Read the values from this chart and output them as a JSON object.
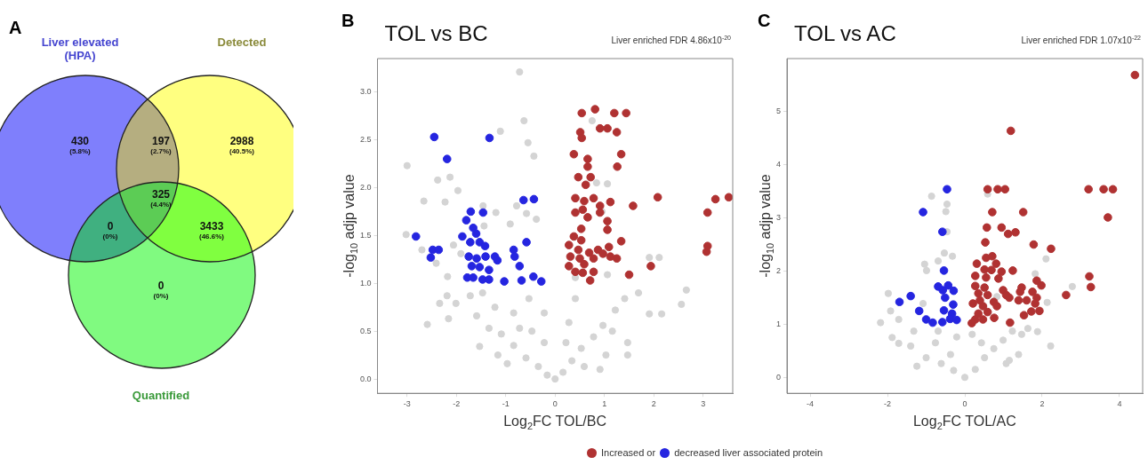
{
  "chart_data": [
    {
      "type": "other",
      "annotations": [
        "A",
        "Liver elevated (HPA)",
        "Detected",
        "Quantified",
        "(5.8%)",
        "(2.7%)",
        "(40.5%)",
        "(4.4%)",
        "(0%)",
        "(46.6%)",
        "(0%)"
      ],
      "categories": [
        null,
        null,
        null,
        null,
        null,
        null,
        null
      ],
      "values": [
        430,
        197,
        2988,
        325,
        0,
        3433,
        0
      ],
      "data_labels": true,
      "colors": [
        "#7f7ffc",
        "#b5ae80",
        "#ffff80",
        "#5ccc55",
        "#40b080",
        "#80ff40",
        "#80fa80"
      ]
    },
    {
      "type": "scatter",
      "title": "TOL vs BC",
      "subtitle": "Liver enriched FDR 4.86x10$^{-20}$",
      "xlabel": "Log$_{2}$FC TOL/BC",
      "ylabel": "-log$_{10}$ adjp value",
      "annotations": [
        "B"
      ],
      "xlim": [
        -3.6,
        3.6
      ],
      "xticks": [
        -3,
        -2,
        -1,
        0,
        1,
        2,
        3
      ],
      "ylim": [
        -0.15,
        3.35
      ],
      "yticks": [
        {
          "value": 0,
          "label": "0.0"
        },
        {
          "value": 0.5,
          "label": "0.5"
        },
        {
          "value": 1,
          "label": "1.0"
        },
        {
          "value": 1.5,
          "label": "1.5"
        },
        {
          "value": 2,
          "label": "2.0"
        },
        {
          "value": 2.5,
          "label": "2.5"
        },
        {
          "value": 3,
          "label": "3.0"
        }
      ],
      "marker": "circle",
      "legend": "bottom",
      "series": [
        {
          "name": "Increased or",
          "color": "#b03232",
          "x": [
            0.54,
            0.81,
            1.2,
            1.44,
            0.51,
            0.91,
            1.06,
            1.25,
            0.54,
            0.38,
            0.66,
            1.34,
            0.66,
            1.26,
            0.47,
            0.72,
            0.62,
            2.08,
            3.25,
            3.52,
            1.58,
            1.12,
            3.09,
            3.07,
            3.09,
            1.94,
            1.5,
            0.71,
            0.41,
            0.59,
            0.78,
            0.91,
            0.56,
            0.41,
            0.66,
            0.91,
            1.06,
            0.53,
            1.06,
            0.38,
            0.53,
            1.34,
            0.28,
            0.47,
            0.87,
            1.09,
            0.69,
            0.97,
            0.31,
            0.5,
            0.78,
            1.12,
            1.25,
            0.28,
            0.59,
            0.41,
            0.56,
            0.78
          ],
          "values": [
            2.78,
            2.82,
            2.78,
            2.78,
            2.58,
            2.62,
            2.62,
            2.58,
            2.52,
            2.35,
            2.3,
            2.35,
            2.22,
            2.22,
            2.11,
            2.11,
            2.03,
            1.9,
            1.88,
            1.9,
            1.81,
            1.85,
            1.74,
            1.33,
            1.39,
            1.18,
            1.09,
            1.03,
            1.89,
            1.86,
            1.89,
            1.81,
            1.77,
            1.74,
            1.69,
            1.74,
            1.65,
            1.57,
            1.56,
            1.49,
            1.45,
            1.44,
            1.4,
            1.35,
            1.35,
            1.38,
            1.32,
            1.31,
            1.28,
            1.26,
            1.26,
            1.28,
            1.26,
            1.18,
            1.2,
            1.12,
            1.11,
            1.12
          ]
        },
        {
          "name": "decreased liver associated protein",
          "color": "#2525e0",
          "x": [
            -2.45,
            -1.33,
            -2.19,
            -0.64,
            -0.43,
            -1.71,
            -1.46,
            -1.8,
            -1.66,
            -1.6,
            -2.82,
            -1.88,
            -0.58,
            -1.72,
            -1.53,
            -2.48,
            -2.36,
            -1.42,
            -0.84,
            -2.52,
            -1.75,
            -1.59,
            -1.41,
            -1.22,
            -1.17,
            -0.82,
            -1.69,
            -1.53,
            -1.34,
            -0.72,
            -0.44,
            -1.66,
            -1.47,
            -1.34,
            -1.03,
            -0.68,
            -0.28,
            -1.78
          ],
          "values": [
            2.53,
            2.52,
            2.3,
            1.87,
            1.88,
            1.75,
            1.74,
            1.66,
            1.58,
            1.52,
            1.49,
            1.49,
            1.43,
            1.43,
            1.43,
            1.35,
            1.35,
            1.39,
            1.35,
            1.27,
            1.28,
            1.26,
            1.28,
            1.28,
            1.24,
            1.28,
            1.18,
            1.17,
            1.14,
            1.18,
            1.07,
            1.06,
            1.04,
            1.04,
            1.02,
            1.03,
            1.02,
            1.06
          ]
        },
        {
          "color": "#d4d4d4",
          "x": [
            -0.72,
            -0.63,
            -1.11,
            -0.55,
            -0.43,
            -3.0,
            -2.38,
            -2.13,
            -1.97,
            -2.66,
            -2.23,
            -1.46,
            -1.2,
            -0.78,
            -0.58,
            -0.38,
            -0.91,
            -1.44,
            -3.02,
            -2.7,
            -2.06,
            -2.41,
            -2.18,
            -1.91,
            0.75,
            0.84,
            1.06,
            0.95,
            1.91,
            2.11,
            1.06,
            0.41,
            -2.19,
            -2.34,
            -2.59,
            -2.01,
            -2.16,
            -1.72,
            -1.47,
            -1.22,
            -1.59,
            -1.34,
            -1.09,
            -0.84,
            -0.59,
            -0.34,
            -0.16,
            0,
            0.16,
            0.34,
            0.53,
            0.78,
            0.97,
            1.22,
            1.41,
            1.69,
            1.91,
            2.16,
            2.56,
            2.66,
            1.47,
            1.47,
            0.59,
            0.41,
            -0.53,
            -0.84,
            -0.22,
            0.28,
            -0.47,
            -1.16,
            -1.53,
            -0.97,
            1.03,
            0.91,
            -0.22,
            0.22,
            1.16,
            -0.72
          ],
          "values": [
            3.21,
            2.7,
            2.59,
            2.47,
            2.33,
            2.23,
            2.08,
            2.11,
            1.97,
            1.86,
            1.85,
            1.81,
            1.74,
            1.81,
            1.73,
            1.67,
            1.62,
            1.6,
            1.51,
            1.35,
            1.4,
            1.21,
            1.07,
            1.31,
            2.7,
            2.05,
            2.04,
            1.75,
            1.27,
            1.27,
            1.09,
            1.06,
            0.87,
            0.79,
            0.57,
            0.79,
            0.63,
            0.87,
            0.9,
            0.75,
            0.66,
            0.53,
            0.47,
            0.35,
            0.22,
            0.13,
            0.04,
            0,
            0.07,
            0.19,
            0.32,
            0.44,
            0.56,
            0.72,
            0.84,
            0.9,
            0.68,
            0.68,
            0.78,
            0.93,
            0.38,
            0.25,
            0.13,
            0.84,
            0.84,
            0.69,
            0.69,
            0.59,
            0.5,
            0.25,
            0.34,
            0.16,
            0.25,
            0.1,
            0.38,
            0.38,
            0.5,
            0.53
          ]
        }
      ]
    },
    {
      "type": "scatter",
      "title": "TOL vs AC",
      "subtitle": "Liver enriched FDR 1.07x10$^{-22}$",
      "xlabel": "Log$_{2}$FC TOL/AC",
      "ylabel": "-log$_{10}$ adjp value",
      "annotations": [
        "C"
      ],
      "xlim": [
        -4.6,
        4.6
      ],
      "xticks": [
        -4,
        -2,
        0,
        2,
        4
      ],
      "ylim": [
        -0.3,
        6
      ],
      "yticks": [
        0,
        1,
        2,
        3,
        4,
        5
      ],
      "marker": "circle",
      "series": [
        {
          "color": "#b03232",
          "x": [
            4.4,
            1.19,
            0.59,
            0.85,
            1.04,
            3.2,
            3.59,
            3.83,
            0.71,
            1.51,
            3.7,
            0.57,
            0.95,
            1.12,
            1.31,
            0.53,
            1.78,
            2.23,
            0.55,
            0.71,
            0.31,
            0.81,
            0.51,
            0.69,
            0.95,
            1.24,
            0.27,
            0.55,
            0.87,
            3.22,
            1.86,
            1.98,
            3.26,
            0.27,
            0.51,
            0.99,
            1.47,
            1.43,
            1.75,
            0.35,
            0.59,
            1.07,
            2.62,
            0.39,
            0.75,
            1.39,
            1.6,
            1.86,
            0.21,
            0.47,
            0.83,
            1.15,
            1.82,
            0.35,
            0.59,
            1.53,
            1.72,
            1.93,
            0.27,
            0.47,
            0.76,
            0.18,
            1.17
          ],
          "values": [
            5.69,
            4.64,
            3.54,
            3.54,
            3.54,
            3.54,
            3.54,
            3.54,
            3.11,
            3.11,
            3.01,
            2.82,
            2.82,
            2.7,
            2.73,
            2.54,
            2.5,
            2.42,
            2.25,
            2.28,
            2.14,
            2.14,
            2.03,
            2.02,
            1.99,
            2.01,
            1.91,
            1.88,
            1.86,
            1.9,
            1.82,
            1.73,
            1.7,
            1.72,
            1.69,
            1.64,
            1.69,
            1.61,
            1.61,
            1.58,
            1.55,
            1.55,
            1.55,
            1.45,
            1.42,
            1.45,
            1.45,
            1.5,
            1.39,
            1.34,
            1.34,
            1.5,
            1.39,
            1.2,
            1.23,
            1.17,
            1.24,
            1.25,
            1.09,
            1.09,
            1.12,
            1.02,
            1.03
          ]
        },
        {
          "color": "#2525e0",
          "x": [
            -0.46,
            -1.08,
            -0.58,
            -0.54,
            -0.69,
            -0.43,
            -0.57,
            -0.29,
            -0.51,
            -1.4,
            -1.69,
            -0.3,
            -1.18,
            -0.54,
            -0.33,
            -1.0,
            -0.83,
            -0.58,
            -0.38,
            -0.21
          ],
          "values": [
            3.54,
            3.11,
            2.74,
            2.01,
            1.71,
            1.73,
            1.64,
            1.63,
            1.5,
            1.53,
            1.42,
            1.37,
            1.25,
            1.26,
            1.2,
            1.09,
            1.03,
            1.04,
            1.1,
            1.08
          ]
        },
        {
          "color": "#d4d4d4",
          "x": [
            -0.86,
            -0.46,
            -0.49,
            -0.46,
            -0.53,
            -0.32,
            -1.04,
            -0.69,
            -0.99,
            0.59,
            0.71,
            2.1,
            1.82,
            2.78,
            2.13,
            -1.98,
            -1.92,
            -1.71,
            -2.18,
            -1.08,
            0.83,
            2.22,
            -1.88,
            -1.71,
            -1.4,
            -1.24,
            -1.0,
            -0.76,
            -0.61,
            -0.29,
            0,
            0.27,
            0.51,
            0.75,
            0.99,
            1.23,
            1.47,
            1.63,
            1.88,
            1.07,
            1.39,
            -0.21,
            0.19,
            -0.37,
            0.43,
            -0.69,
            -1.32,
            1.15
          ],
          "values": [
            3.41,
            3.26,
            3.12,
            2.74,
            2.34,
            2.28,
            2.13,
            2.19,
            2.01,
            3.45,
            null,
            2.23,
            1.95,
            1.71,
            1.41,
            1.58,
            1.25,
            1.09,
            1.03,
            1.39,
            1.52,
            0.59,
            0.75,
            0.64,
            0.59,
            0.21,
            0.37,
            0.65,
            0.26,
            0.13,
            0,
            0.15,
            0.37,
            0.54,
            0.7,
            0.87,
            0.81,
            0.92,
            0.86,
            0.26,
            0.43,
            0.76,
            0.81,
            0.43,
            0.65,
            0.87,
            0.87,
            0.32
          ]
        }
      ]
    }
  ]
}
